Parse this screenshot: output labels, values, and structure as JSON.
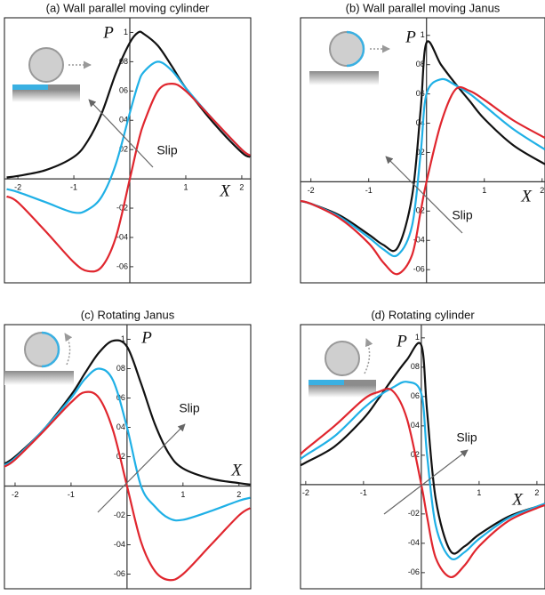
{
  "chart_data": [
    {
      "type": "line",
      "title": "(a) Wall parallel moving cylinder",
      "x_label": "X",
      "y_label": "P",
      "annotation": "Slip",
      "x": [
        -2.2,
        -2,
        -1.5,
        -1,
        -0.75,
        -0.5,
        -0.25,
        0,
        0.15,
        0.25,
        0.5,
        0.75,
        1,
        1.5,
        2,
        2.15
      ],
      "series": [
        {
          "color": "#111111",
          "values": [
            0.01,
            0.02,
            0.06,
            0.15,
            0.26,
            0.45,
            0.72,
            0.93,
            1.0,
            0.99,
            0.91,
            0.77,
            0.62,
            0.38,
            0.18,
            0.15
          ]
        },
        {
          "color": "#1fb0e6",
          "values": [
            -0.07,
            -0.09,
            -0.16,
            -0.23,
            -0.21,
            -0.12,
            0.1,
            0.45,
            0.65,
            0.73,
            0.8,
            0.74,
            0.62,
            0.4,
            0.2,
            0.16
          ]
        },
        {
          "color": "#e0262e",
          "values": [
            -0.12,
            -0.16,
            -0.36,
            -0.57,
            -0.63,
            -0.6,
            -0.4,
            0.0,
            0.25,
            0.38,
            0.6,
            0.65,
            0.6,
            0.4,
            0.2,
            0.16
          ]
        }
      ],
      "xlim": [
        -2.24,
        2.16
      ],
      "ylim": [
        -0.71,
        1.1
      ],
      "xticks": [
        -2,
        -1,
        1,
        2
      ],
      "yticks": [
        1,
        {
          "value": 0.8,
          "label": "08"
        },
        {
          "value": 0.6,
          "label": "06"
        },
        {
          "value": 0.4,
          "label": "04"
        },
        {
          "value": 0.2,
          "label": "02"
        },
        {
          "value": -0.2,
          "label": "-02"
        },
        {
          "value": -0.4,
          "label": "-04"
        },
        {
          "value": -0.6,
          "label": "-06"
        }
      ]
    },
    {
      "type": "line",
      "title": "(b) Wall parallel moving Janus",
      "x_label": "X",
      "y_label": "P",
      "annotation": "Slip",
      "x": [
        -2.2,
        -2,
        -1.5,
        -1,
        -0.75,
        -0.5,
        -0.25,
        -0.1,
        0,
        0.25,
        0.5,
        0.75,
        1,
        1.5,
        2.05
      ],
      "series": [
        {
          "color": "#111111",
          "values": [
            -0.13,
            -0.15,
            -0.23,
            -0.36,
            -0.43,
            -0.45,
            -0.1,
            0.5,
            0.95,
            0.8,
            0.67,
            0.55,
            0.43,
            0.25,
            0.12
          ]
        },
        {
          "color": "#1fb0e6",
          "values": [
            -0.13,
            -0.15,
            -0.24,
            -0.38,
            -0.46,
            -0.5,
            -0.3,
            0.2,
            0.6,
            0.7,
            0.66,
            0.6,
            0.52,
            0.36,
            0.22
          ]
        },
        {
          "color": "#e0262e",
          "values": [
            -0.13,
            -0.15,
            -0.25,
            -0.42,
            -0.55,
            -0.63,
            -0.5,
            -0.2,
            0.0,
            0.4,
            0.63,
            0.62,
            0.56,
            0.42,
            0.3
          ]
        }
      ],
      "xlim": [
        -2.18,
        2.05
      ],
      "ylim": [
        -0.69,
        1.12
      ],
      "xticks": [
        -2,
        -1,
        1,
        2
      ],
      "yticks": [
        1,
        {
          "value": 0.8,
          "label": "08"
        },
        {
          "value": 0.6,
          "label": "06"
        },
        {
          "value": 0.4,
          "label": "04"
        },
        {
          "value": 0.2,
          "label": "02"
        },
        {
          "value": -0.2,
          "label": "-02"
        },
        {
          "value": -0.4,
          "label": "-04"
        },
        {
          "value": -0.6,
          "label": "-06"
        }
      ]
    },
    {
      "type": "line",
      "title": "(c) Rotating Janus",
      "x_label": "X",
      "y_label": "P",
      "annotation": "Slip",
      "x": [
        -2.2,
        -2,
        -1.5,
        -1,
        -0.75,
        -0.5,
        -0.25,
        0,
        0.25,
        0.5,
        0.75,
        1,
        1.5,
        2,
        2.2
      ],
      "series": [
        {
          "color": "#111111",
          "values": [
            0.15,
            0.2,
            0.38,
            0.62,
            0.77,
            0.91,
            0.99,
            0.95,
            0.7,
            0.42,
            0.22,
            0.12,
            0.05,
            0.02,
            0.01
          ]
        },
        {
          "color": "#1fb0e6",
          "values": [
            0.14,
            0.19,
            0.38,
            0.6,
            0.73,
            0.8,
            0.72,
            0.4,
            0.0,
            -0.14,
            -0.22,
            -0.23,
            -0.17,
            -0.1,
            -0.08
          ]
        },
        {
          "color": "#e0262e",
          "values": [
            0.13,
            0.18,
            0.37,
            0.57,
            0.64,
            0.6,
            0.38,
            0.0,
            -0.38,
            -0.58,
            -0.64,
            -0.6,
            -0.4,
            -0.2,
            -0.15
          ]
        }
      ],
      "xlim": [
        -2.19,
        2.21
      ],
      "ylim": [
        -0.7,
        1.1
      ],
      "xticks": [
        -2,
        -1,
        1,
        2
      ],
      "yticks": [
        1,
        {
          "value": 0.8,
          "label": "08"
        },
        {
          "value": 0.6,
          "label": "06"
        },
        {
          "value": 0.4,
          "label": "04"
        },
        {
          "value": 0.2,
          "label": "02"
        },
        {
          "value": -0.2,
          "label": "-02"
        },
        {
          "value": -0.4,
          "label": "-04"
        },
        {
          "value": -0.6,
          "label": "-06"
        }
      ]
    },
    {
      "type": "line",
      "title": "(d) Rotating cylinder",
      "x_label": "X",
      "y_label": "P",
      "annotation": "Slip",
      "x": [
        -2.1,
        -2,
        -1.5,
        -1,
        -0.75,
        -0.5,
        -0.25,
        0,
        0.1,
        0.25,
        0.5,
        0.75,
        1,
        1.5,
        2,
        2.14
      ],
      "series": [
        {
          "color": "#111111",
          "values": [
            0.13,
            0.15,
            0.26,
            0.45,
            0.58,
            0.72,
            0.85,
            0.95,
            0.5,
            -0.1,
            -0.45,
            -0.42,
            -0.34,
            -0.22,
            -0.15,
            -0.13
          ]
        },
        {
          "color": "#1fb0e6",
          "values": [
            0.17,
            0.2,
            0.33,
            0.52,
            0.6,
            0.66,
            0.7,
            0.62,
            0.2,
            -0.28,
            -0.5,
            -0.46,
            -0.37,
            -0.23,
            -0.15,
            -0.13
          ]
        },
        {
          "color": "#e0262e",
          "values": [
            0.2,
            0.24,
            0.4,
            0.58,
            0.63,
            0.64,
            0.45,
            0.0,
            -0.22,
            -0.5,
            -0.63,
            -0.55,
            -0.42,
            -0.25,
            -0.16,
            -0.14
          ]
        }
      ],
      "xlim": [
        -2.09,
        2.14
      ],
      "ylim": [
        -0.71,
        1.09
      ],
      "xticks": [
        -2,
        -1,
        1,
        2
      ],
      "yticks": [
        1,
        {
          "value": 0.8,
          "label": "08"
        },
        {
          "value": 0.6,
          "label": "06"
        },
        {
          "value": 0.4,
          "label": "04"
        },
        {
          "value": 0.2,
          "label": "02"
        },
        {
          "value": -0.2,
          "label": "-02"
        },
        {
          "value": -0.4,
          "label": "-04"
        },
        {
          "value": -0.6,
          "label": "-06"
        }
      ]
    }
  ]
}
